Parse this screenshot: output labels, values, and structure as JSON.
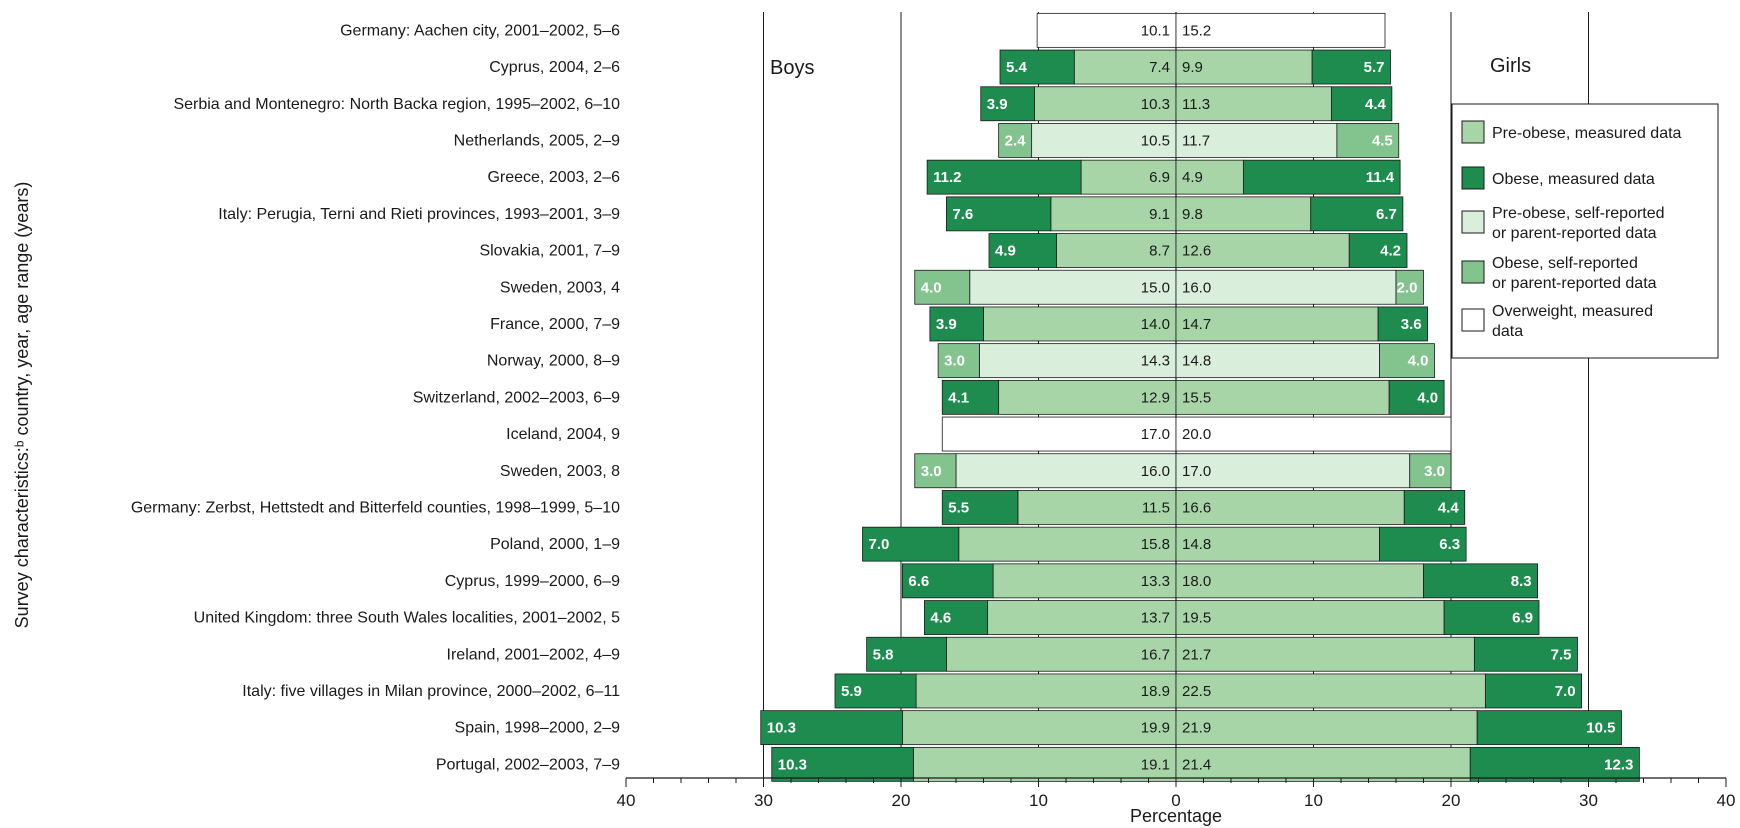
{
  "chart_data": {
    "type": "bar",
    "xlabel": "Percentage",
    "ylabel": "Survey characteristics:ᵇ country, year, age range (years)",
    "xlim": [
      -40,
      40
    ],
    "x_ticks": [
      "40",
      "30",
      "20",
      "10",
      "0",
      "10",
      "20",
      "30",
      "40"
    ],
    "side_labels": {
      "left": "Boys",
      "right": "Girls"
    },
    "grid": "vertical lines at 10, 20, 30",
    "legend_position": "right",
    "categories": [
      {
        "key": "pm",
        "label": "Pre-obese, measured data",
        "color": "#a8d5a8",
        "text_color": "#1a1a1a"
      },
      {
        "key": "om",
        "label": "Obese, measured data",
        "color": "#1e8c4e",
        "text_color": "#ffffff"
      },
      {
        "key": "ps",
        "label": "Pre-obese, self-reported or parent-reported data",
        "color": "#d9eedb",
        "text_color": "#1a1a1a"
      },
      {
        "key": "os",
        "label": "Obese, self-reported or parent-reported data",
        "color": "#82c38e",
        "text_color": "#ffffff"
      },
      {
        "key": "ow",
        "label": "Overweight, measured data",
        "color": "#ffffff",
        "text_color": "#1a1a1a"
      }
    ],
    "legend_lines": [
      [
        "Pre-obese, measured data"
      ],
      [
        "Obese, measured data"
      ],
      [
        "Pre-obese, self-reported",
        "or parent-reported data"
      ],
      [
        "Obese, self-reported",
        "or parent-reported data"
      ],
      [
        "Overweight, measured",
        "data"
      ]
    ],
    "rows": [
      {
        "label": "Germany: Aachen city, 2001–2002, 5–6",
        "kind": "ow",
        "boys": [
          10.1
        ],
        "girls": [
          15.2
        ]
      },
      {
        "label": "Cyprus, 2004, 2–6",
        "kind": "m",
        "boys": [
          7.4,
          5.4
        ],
        "girls": [
          9.9,
          5.7
        ]
      },
      {
        "label": "Serbia and Montenegro: North Backa region, 1995–2002, 6–10",
        "kind": "m",
        "boys": [
          10.3,
          3.9
        ],
        "girls": [
          11.3,
          4.4
        ]
      },
      {
        "label": "Netherlands, 2005, 2–9",
        "kind": "s",
        "boys": [
          10.5,
          2.4
        ],
        "girls": [
          11.7,
          4.5
        ]
      },
      {
        "label": "Greece, 2003, 2–6",
        "kind": "m",
        "boys": [
          6.9,
          11.2
        ],
        "girls": [
          4.9,
          11.4
        ]
      },
      {
        "label": "Italy: Perugia, Terni and Rieti provinces, 1993–2001, 3–9",
        "kind": "m",
        "boys": [
          9.1,
          7.6
        ],
        "girls": [
          9.8,
          6.7
        ]
      },
      {
        "label": "Slovakia, 2001, 7–9",
        "kind": "m",
        "boys": [
          8.7,
          4.9
        ],
        "girls": [
          12.6,
          4.2
        ]
      },
      {
        "label": "Sweden, 2003, 4",
        "kind": "s",
        "boys": [
          15.0,
          4.0
        ],
        "girls": [
          16.0,
          2.0
        ]
      },
      {
        "label": "France, 2000, 7–9",
        "kind": "m",
        "boys": [
          14.0,
          3.9
        ],
        "girls": [
          14.7,
          3.6
        ]
      },
      {
        "label": "Norway, 2000, 8–9",
        "kind": "s",
        "boys": [
          14.3,
          3.0
        ],
        "girls": [
          14.8,
          4.0
        ]
      },
      {
        "label": "Switzerland, 2002–2003, 6–9",
        "kind": "m",
        "boys": [
          12.9,
          4.1
        ],
        "girls": [
          15.5,
          4.0
        ]
      },
      {
        "label": "Iceland, 2004, 9",
        "kind": "ow",
        "boys": [
          17.0
        ],
        "girls": [
          20.0
        ]
      },
      {
        "label": "Sweden, 2003, 8",
        "kind": "s",
        "boys": [
          16.0,
          3.0
        ],
        "girls": [
          17.0,
          3.0
        ]
      },
      {
        "label": "Germany: Zerbst, Hettstedt and Bitterfeld counties, 1998–1999, 5–10",
        "kind": "m",
        "boys": [
          11.5,
          5.5
        ],
        "girls": [
          16.6,
          4.4
        ]
      },
      {
        "label": "Poland, 2000, 1–9",
        "kind": "m",
        "boys": [
          15.8,
          7.0
        ],
        "girls": [
          14.8,
          6.3
        ]
      },
      {
        "label": "Cyprus, 1999–2000, 6–9",
        "kind": "m",
        "boys": [
          13.3,
          6.6
        ],
        "girls": [
          18.0,
          8.3
        ]
      },
      {
        "label": "United Kingdom: three South Wales localities, 2001–2002, 5",
        "kind": "m",
        "boys": [
          13.7,
          4.6
        ],
        "girls": [
          19.5,
          6.9
        ]
      },
      {
        "label": "Ireland, 2001–2002, 4–9",
        "kind": "m",
        "boys": [
          16.7,
          5.8
        ],
        "girls": [
          21.7,
          7.5
        ]
      },
      {
        "label": "Italy: five villages in Milan province, 2000–2002, 6–11",
        "kind": "m",
        "boys": [
          18.9,
          5.9
        ],
        "girls": [
          22.5,
          7.0
        ]
      },
      {
        "label": "Spain, 1998–2000, 2–9",
        "kind": "m",
        "boys": [
          19.9,
          10.3
        ],
        "girls": [
          21.9,
          10.5
        ]
      },
      {
        "label": "Portugal, 2002–2003, 7–9",
        "kind": "m",
        "boys": [
          19.1,
          10.3
        ],
        "girls": [
          21.4,
          12.3
        ]
      }
    ]
  }
}
